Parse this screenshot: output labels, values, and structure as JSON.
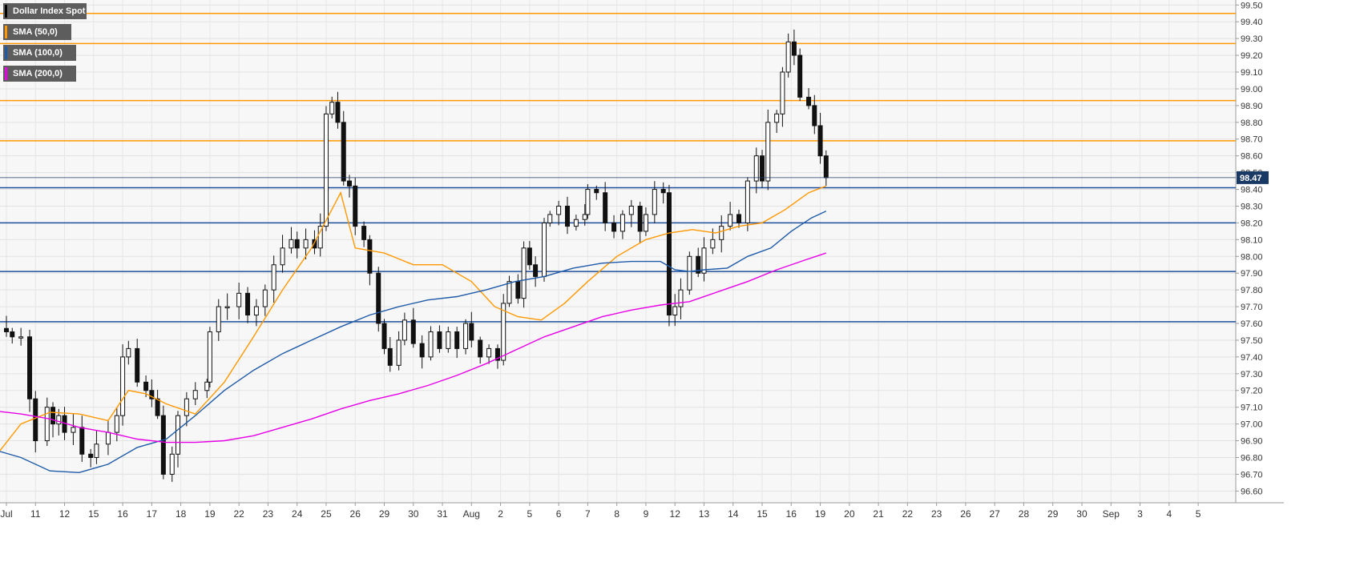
{
  "legend": {
    "items": [
      {
        "label": "Dollar Index Spot",
        "color": "#000000",
        "width": 104
      },
      {
        "label": "SMA (50,0)",
        "color": "#ff9800",
        "width": 85
      },
      {
        "label": "SMA (100,0)",
        "color": "#1e5aa8",
        "width": 91
      },
      {
        "label": "SMA (200,0)",
        "color": "#e600e6",
        "width": 91
      }
    ]
  },
  "chart_data": {
    "type": "candlestick",
    "title": "Dollar Index Spot",
    "ylim": [
      96.53,
      99.53
    ],
    "y_ticks": [
      99.5,
      99.4,
      99.3,
      99.2,
      99.1,
      99.0,
      98.9,
      98.8,
      98.7,
      98.6,
      98.5,
      98.4,
      98.3,
      98.2,
      98.1,
      98.0,
      97.9,
      97.8,
      97.7,
      97.6,
      97.5,
      97.4,
      97.3,
      97.2,
      97.1,
      97.0,
      96.9,
      96.8,
      96.7,
      96.6
    ],
    "x_ticks": [
      "Jul",
      "11",
      "12",
      "15",
      "16",
      "17",
      "18",
      "19",
      "22",
      "23",
      "24",
      "25",
      "26",
      "29",
      "30",
      "31",
      "Aug",
      "2",
      "5",
      "6",
      "7",
      "8",
      "9",
      "12",
      "13",
      "14",
      "15",
      "16",
      "19",
      "20",
      "21",
      "22",
      "23",
      "26",
      "27",
      "28",
      "29",
      "30",
      "Sep",
      "3",
      "4",
      "5"
    ],
    "current_price": 98.47,
    "resistance_levels": [
      99.45,
      99.27,
      98.93,
      98.69
    ],
    "support_levels": [
      98.41,
      98.2,
      97.91,
      97.61
    ],
    "session_closes": [
      [
        0.0,
        97.55
      ],
      [
        0.2,
        97.52
      ],
      [
        0.5,
        97.52
      ],
      [
        0.8,
        97.15
      ],
      [
        1.0,
        96.9
      ],
      [
        1.4,
        97.1
      ],
      [
        1.6,
        97.0
      ],
      [
        1.8,
        97.05
      ],
      [
        2.0,
        96.95
      ],
      [
        2.3,
        96.98
      ],
      [
        2.6,
        96.82
      ],
      [
        2.9,
        96.8
      ],
      [
        3.1,
        96.88
      ],
      [
        3.5,
        96.95
      ],
      [
        3.8,
        97.05
      ],
      [
        4.0,
        97.4
      ],
      [
        4.2,
        97.45
      ],
      [
        4.5,
        97.25
      ],
      [
        4.8,
        97.2
      ],
      [
        5.0,
        97.15
      ],
      [
        5.2,
        97.05
      ],
      [
        5.4,
        96.7
      ],
      [
        5.7,
        96.82
      ],
      [
        5.9,
        97.05
      ],
      [
        6.2,
        97.15
      ],
      [
        6.5,
        97.2
      ],
      [
        6.9,
        97.25
      ],
      [
        7.0,
        97.55
      ],
      [
        7.3,
        97.7
      ],
      [
        7.6,
        97.7
      ],
      [
        8.0,
        97.78
      ],
      [
        8.3,
        97.65
      ],
      [
        8.6,
        97.7
      ],
      [
        8.9,
        97.8
      ],
      [
        9.2,
        97.95
      ],
      [
        9.5,
        98.05
      ],
      [
        9.8,
        98.1
      ],
      [
        10.0,
        98.05
      ],
      [
        10.3,
        98.1
      ],
      [
        10.6,
        98.05
      ],
      [
        10.8,
        98.18
      ],
      [
        11.0,
        98.85
      ],
      [
        11.2,
        98.92
      ],
      [
        11.4,
        98.8
      ],
      [
        11.6,
        98.45
      ],
      [
        11.8,
        98.42
      ],
      [
        12.0,
        98.18
      ],
      [
        12.3,
        98.1
      ],
      [
        12.5,
        97.9
      ],
      [
        12.8,
        97.6
      ],
      [
        13.0,
        97.45
      ],
      [
        13.2,
        97.35
      ],
      [
        13.5,
        97.5
      ],
      [
        13.7,
        97.62
      ],
      [
        14.0,
        97.48
      ],
      [
        14.3,
        97.4
      ],
      [
        14.6,
        97.55
      ],
      [
        14.9,
        97.45
      ],
      [
        15.2,
        97.55
      ],
      [
        15.5,
        97.45
      ],
      [
        15.8,
        97.6
      ],
      [
        16.0,
        97.5
      ],
      [
        16.3,
        97.4
      ],
      [
        16.6,
        97.45
      ],
      [
        16.9,
        97.38
      ],
      [
        17.1,
        97.72
      ],
      [
        17.3,
        97.85
      ],
      [
        17.6,
        97.75
      ],
      [
        17.8,
        98.05
      ],
      [
        18.0,
        97.95
      ],
      [
        18.2,
        97.88
      ],
      [
        18.5,
        98.2
      ],
      [
        18.7,
        98.25
      ],
      [
        19.0,
        98.3
      ],
      [
        19.3,
        98.18
      ],
      [
        19.6,
        98.22
      ],
      [
        19.9,
        98.25
      ],
      [
        20.0,
        98.4
      ],
      [
        20.3,
        98.38
      ],
      [
        20.6,
        98.2
      ],
      [
        20.9,
        98.15
      ],
      [
        21.2,
        98.25
      ],
      [
        21.5,
        98.3
      ],
      [
        21.8,
        98.15
      ],
      [
        22.0,
        98.25
      ],
      [
        22.3,
        98.4
      ],
      [
        22.6,
        98.38
      ],
      [
        22.8,
        97.65
      ],
      [
        23.0,
        97.7
      ],
      [
        23.2,
        97.8
      ],
      [
        23.5,
        98.0
      ],
      [
        23.8,
        97.9
      ],
      [
        24.0,
        98.05
      ],
      [
        24.3,
        98.1
      ],
      [
        24.6,
        98.18
      ],
      [
        24.9,
        98.25
      ],
      [
        25.2,
        98.2
      ],
      [
        25.5,
        98.45
      ],
      [
        25.8,
        98.6
      ],
      [
        26.0,
        98.45
      ],
      [
        26.2,
        98.8
      ],
      [
        26.5,
        98.85
      ],
      [
        26.7,
        99.1
      ],
      [
        26.9,
        99.28
      ],
      [
        27.1,
        99.2
      ],
      [
        27.3,
        98.95
      ],
      [
        27.6,
        98.9
      ],
      [
        27.8,
        98.78
      ],
      [
        28.0,
        98.6
      ],
      [
        28.2,
        98.47
      ]
    ],
    "series": [
      {
        "name": "SMA (50,0)",
        "color": "#ff9800",
        "points": [
          [
            -0.5,
            96.78
          ],
          [
            0.5,
            97.0
          ],
          [
            1.5,
            97.07
          ],
          [
            2.5,
            97.06
          ],
          [
            3.5,
            97.02
          ],
          [
            4.2,
            97.2
          ],
          [
            4.8,
            97.18
          ],
          [
            5.5,
            97.12
          ],
          [
            6.5,
            97.06
          ],
          [
            7.5,
            97.25
          ],
          [
            8.5,
            97.52
          ],
          [
            9.5,
            97.8
          ],
          [
            10.5,
            98.05
          ],
          [
            11.5,
            98.38
          ],
          [
            12.0,
            98.05
          ],
          [
            13.0,
            98.02
          ],
          [
            14.0,
            97.95
          ],
          [
            15.0,
            97.95
          ],
          [
            16.0,
            97.85
          ],
          [
            16.8,
            97.7
          ],
          [
            17.6,
            97.64
          ],
          [
            18.4,
            97.62
          ],
          [
            19.2,
            97.72
          ],
          [
            20.0,
            97.85
          ],
          [
            21.0,
            98.0
          ],
          [
            22.0,
            98.1
          ],
          [
            22.8,
            98.14
          ],
          [
            23.6,
            98.16
          ],
          [
            24.4,
            98.14
          ],
          [
            25.2,
            98.18
          ],
          [
            26.0,
            98.2
          ],
          [
            26.8,
            98.28
          ],
          [
            27.6,
            98.38
          ],
          [
            28.2,
            98.42
          ]
        ]
      },
      {
        "name": "SMA (100,0)",
        "color": "#1e5aa8",
        "points": [
          [
            -0.5,
            96.85
          ],
          [
            0.5,
            96.8
          ],
          [
            1.5,
            96.72
          ],
          [
            2.5,
            96.71
          ],
          [
            3.5,
            96.76
          ],
          [
            4.5,
            96.86
          ],
          [
            5.5,
            96.91
          ],
          [
            6.5,
            97.05
          ],
          [
            7.5,
            97.2
          ],
          [
            8.5,
            97.32
          ],
          [
            9.5,
            97.42
          ],
          [
            10.5,
            97.5
          ],
          [
            11.5,
            97.58
          ],
          [
            12.5,
            97.65
          ],
          [
            13.5,
            97.7
          ],
          [
            14.5,
            97.74
          ],
          [
            15.5,
            97.76
          ],
          [
            16.5,
            97.8
          ],
          [
            17.5,
            97.85
          ],
          [
            18.5,
            97.88
          ],
          [
            19.5,
            97.93
          ],
          [
            20.5,
            97.96
          ],
          [
            21.5,
            97.97
          ],
          [
            22.5,
            97.97
          ],
          [
            23.0,
            97.92
          ],
          [
            23.5,
            97.91
          ],
          [
            24.0,
            97.92
          ],
          [
            24.8,
            97.93
          ],
          [
            25.5,
            98.0
          ],
          [
            26.3,
            98.05
          ],
          [
            27.0,
            98.15
          ],
          [
            27.7,
            98.23
          ],
          [
            28.2,
            98.27
          ]
        ]
      },
      {
        "name": "SMA (200,0)",
        "color": "#e600e6",
        "points": [
          [
            -0.5,
            97.08
          ],
          [
            0.5,
            97.06
          ],
          [
            1.5,
            97.03
          ],
          [
            2.5,
            96.98
          ],
          [
            3.5,
            96.95
          ],
          [
            4.5,
            96.91
          ],
          [
            5.5,
            96.89
          ],
          [
            6.5,
            96.89
          ],
          [
            7.5,
            96.9
          ],
          [
            8.5,
            96.93
          ],
          [
            9.5,
            96.98
          ],
          [
            10.5,
            97.03
          ],
          [
            11.5,
            97.09
          ],
          [
            12.5,
            97.14
          ],
          [
            13.5,
            97.18
          ],
          [
            14.5,
            97.23
          ],
          [
            15.5,
            97.29
          ],
          [
            16.5,
            97.36
          ],
          [
            17.5,
            97.44
          ],
          [
            18.5,
            97.52
          ],
          [
            19.5,
            97.58
          ],
          [
            20.5,
            97.64
          ],
          [
            21.5,
            97.68
          ],
          [
            22.5,
            97.71
          ],
          [
            23.5,
            97.73
          ],
          [
            24.5,
            97.79
          ],
          [
            25.5,
            97.85
          ],
          [
            26.5,
            97.92
          ],
          [
            27.5,
            97.98
          ],
          [
            28.2,
            98.02
          ]
        ]
      }
    ]
  }
}
